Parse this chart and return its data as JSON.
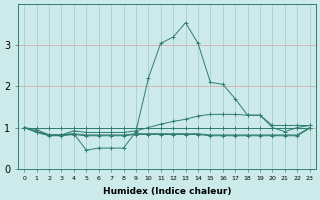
{
  "xlabel": "Humidex (Indice chaleur)",
  "x": [
    0,
    1,
    2,
    3,
    4,
    5,
    6,
    7,
    8,
    9,
    10,
    11,
    12,
    13,
    14,
    15,
    16,
    17,
    18,
    19,
    20,
    21,
    22,
    23
  ],
  "line1": [
    1.0,
    0.9,
    0.82,
    0.82,
    0.85,
    0.45,
    0.5,
    0.5,
    0.5,
    0.9,
    2.2,
    3.05,
    3.2,
    3.55,
    3.05,
    2.1,
    2.05,
    1.7,
    1.3,
    1.3,
    1.0,
    0.9,
    1.0,
    1.05
  ],
  "line2": [
    1.0,
    0.95,
    0.82,
    0.82,
    0.92,
    0.88,
    0.88,
    0.88,
    0.88,
    0.92,
    1.0,
    1.08,
    1.15,
    1.2,
    1.28,
    1.32,
    1.32,
    1.32,
    1.3,
    1.3,
    1.05,
    1.05,
    1.05,
    1.05
  ],
  "line3": [
    1.0,
    1.0,
    1.0,
    1.0,
    1.0,
    1.0,
    1.0,
    1.0,
    1.0,
    1.0,
    1.0,
    1.0,
    1.0,
    1.0,
    1.0,
    1.0,
    1.0,
    1.0,
    1.0,
    1.0,
    1.0,
    1.0,
    1.0,
    1.0
  ],
  "line4": [
    1.0,
    0.9,
    0.82,
    0.82,
    0.85,
    0.82,
    0.82,
    0.82,
    0.82,
    0.85,
    0.85,
    0.85,
    0.85,
    0.85,
    0.85,
    0.82,
    0.82,
    0.82,
    0.82,
    0.82,
    0.82,
    0.82,
    0.82,
    1.0
  ],
  "line5": [
    1.0,
    0.88,
    0.8,
    0.8,
    0.83,
    0.8,
    0.8,
    0.8,
    0.8,
    0.83,
    0.83,
    0.83,
    0.83,
    0.83,
    0.83,
    0.8,
    0.8,
    0.8,
    0.8,
    0.8,
    0.8,
    0.8,
    0.8,
    0.98
  ],
  "line_color": "#2e7d6e",
  "bg_color": "#cceaea",
  "grid_color_h": "#d9a0a0",
  "grid_color_v": "#a0c8c8",
  "ylim": [
    0,
    4
  ],
  "yticks": [
    0,
    1,
    2,
    3
  ],
  "xlim": [
    -0.5,
    23.5
  ]
}
